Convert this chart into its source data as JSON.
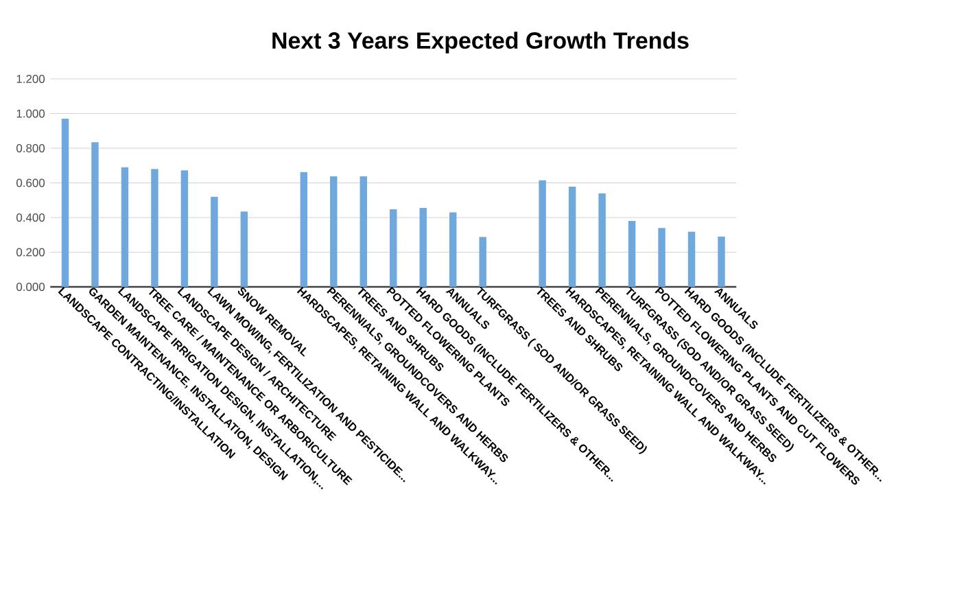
{
  "chart_data": {
    "type": "bar",
    "title": "Next 3 Years Expected Growth Trends",
    "categories": [
      "LANDSCAPE CONTRACTING/INSTALLATION",
      "GARDEN MAINTENANCE, INSTALLATION, DESIGN",
      "LANDSCAPE IRRIGATION DESIGN, INSTALLATION,...",
      "TREE CARE / MAINTENANCE OR ARBORICULTURE",
      "LANDSCAPE DESIGN / ARCHITECTURE",
      "LAWN MOWING, FERTILIZATION AND PESTICIDE...",
      "SNOW REMOVAL",
      null,
      "HARDSCAPES, RETAINING WALL AND WALKWAY...",
      "PERENNIALS, GROUNDCOVERS AND HERBS",
      "TREES AND SHRUBS",
      "POTTED FLOWERING PLANTS",
      "HARD GOODS (INCLUDE FERTILIZERS & OTHER...",
      "ANNUALS",
      "TURFGRASS ( SOD AND/OR GRASS SEED)",
      null,
      "TREES AND SHRUBS",
      "HARDSCAPES, RETAINING WALL AND WALKWAY...",
      "PERENNIALS, GROUNDCOVERS AND HERBS",
      "TURFGRASS (SOD AND/OR GRASS SEED)",
      "POTTED FLOWERING PLANTS AND CUT FLOWERS",
      "HARD GOODS (INCLUDE FERTILIZERS & OTHER...",
      "ANNUALS"
    ],
    "values": [
      0.97,
      0.835,
      0.69,
      0.68,
      0.672,
      0.52,
      0.435,
      null,
      0.662,
      0.638,
      0.638,
      0.447,
      0.455,
      0.43,
      0.288,
      null,
      0.615,
      0.578,
      0.54,
      0.38,
      0.34,
      0.318,
      0.29
    ],
    "color": "#6fa8dc",
    "ylim": [
      0,
      1.2
    ],
    "yticks": [
      {
        "value": 0,
        "label": "0.000"
      },
      {
        "value": 0.2,
        "label": "0.200"
      },
      {
        "value": 0.4,
        "label": "0.400"
      },
      {
        "value": 0.6,
        "label": "0.600"
      },
      {
        "value": 0.8,
        "label": "0.800"
      },
      {
        "value": 1.0,
        "label": "1.000"
      },
      {
        "value": 1.2,
        "label": "1.200"
      }
    ],
    "grid": "y"
  }
}
